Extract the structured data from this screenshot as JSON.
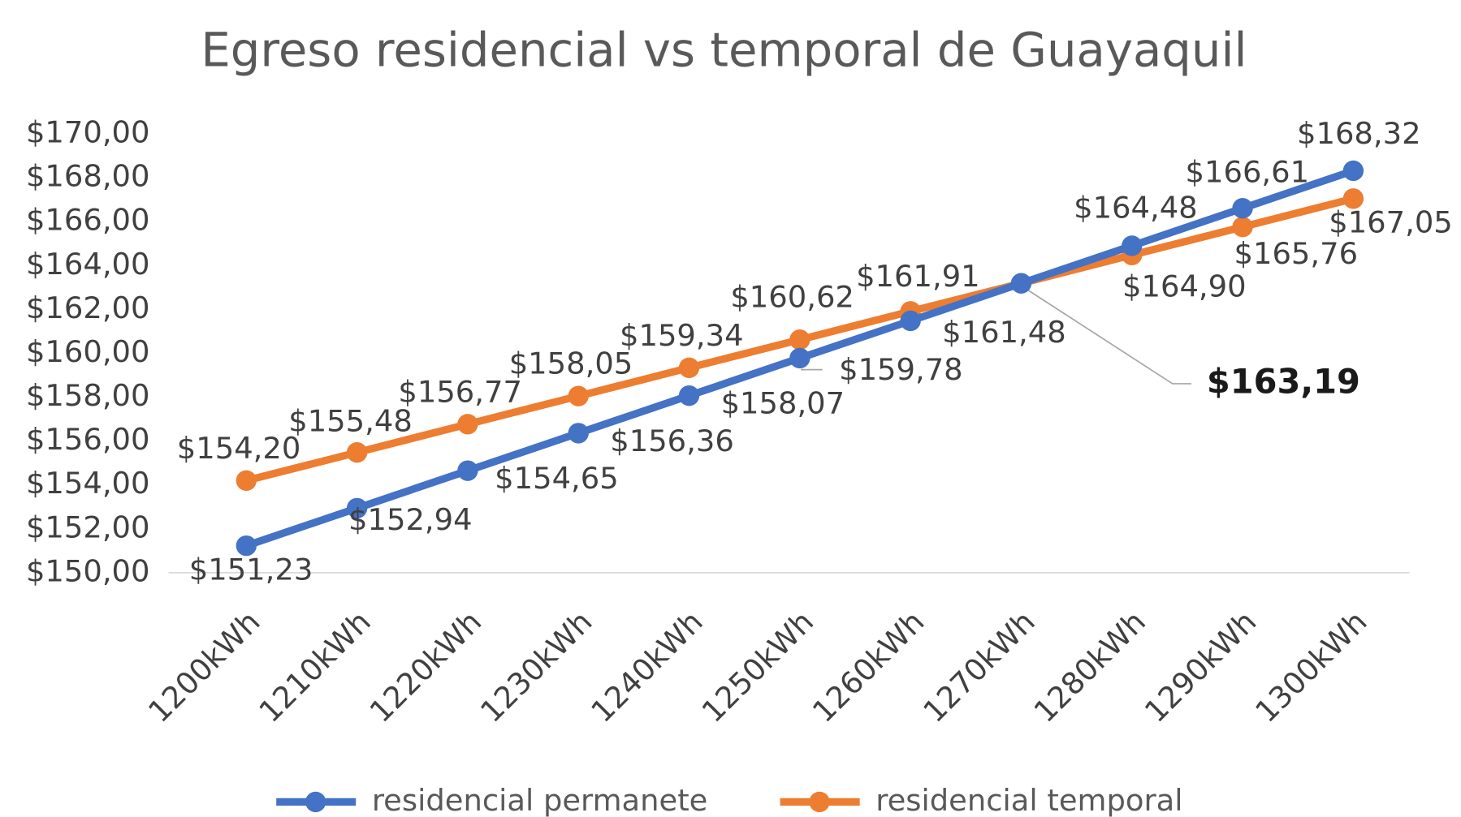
{
  "chart_data": {
    "type": "line",
    "title": "Egreso residencial vs temporal de Guayaquil",
    "categories": [
      "1200kWh",
      "1210kWh",
      "1220kWh",
      "1230kWh",
      "1240kWh",
      "1250kWh",
      "1260kWh",
      "1270kWh",
      "1280kWh",
      "1290kWh",
      "1300kWh"
    ],
    "series": [
      {
        "name": "residencial permanete",
        "color": "#4472c4",
        "values": [
          151.23,
          152.94,
          154.65,
          156.36,
          158.07,
          159.78,
          161.48,
          163.19,
          164.9,
          166.61,
          168.32
        ],
        "value_labels": [
          "$151,23",
          "$152,94",
          "$154,65",
          "$156,36",
          "$158,07",
          "$159,78",
          "$161,48",
          "$163,19",
          "$164,90",
          "$166,61",
          "$168,32"
        ]
      },
      {
        "name": "residencial temporal",
        "color": "#ed7d31",
        "values": [
          154.2,
          155.48,
          156.77,
          158.05,
          159.34,
          160.62,
          161.91,
          163.19,
          164.48,
          165.76,
          167.05
        ],
        "value_labels": [
          "$154,20",
          "$155,48",
          "$156,77",
          "$158,05",
          "$159,34",
          "$160,62",
          "$161,91",
          null,
          "$164,48",
          "$165,76",
          "$167,05"
        ]
      }
    ],
    "ylim": [
      150,
      170
    ],
    "yticks": [
      {
        "value": 150,
        "label": "$150,00"
      },
      {
        "value": 152,
        "label": "$152,00"
      },
      {
        "value": 154,
        "label": "$154,00"
      },
      {
        "value": 156,
        "label": "$156,00"
      },
      {
        "value": 158,
        "label": "$158,00"
      },
      {
        "value": 160,
        "label": "$160,00"
      },
      {
        "value": 162,
        "label": "$162,00"
      },
      {
        "value": 164,
        "label": "$164,00"
      },
      {
        "value": 166,
        "label": "$166,00"
      },
      {
        "value": 168,
        "label": "$168,00"
      },
      {
        "value": 170,
        "label": "$170,00"
      }
    ],
    "grid": false,
    "legend": "bottom"
  }
}
